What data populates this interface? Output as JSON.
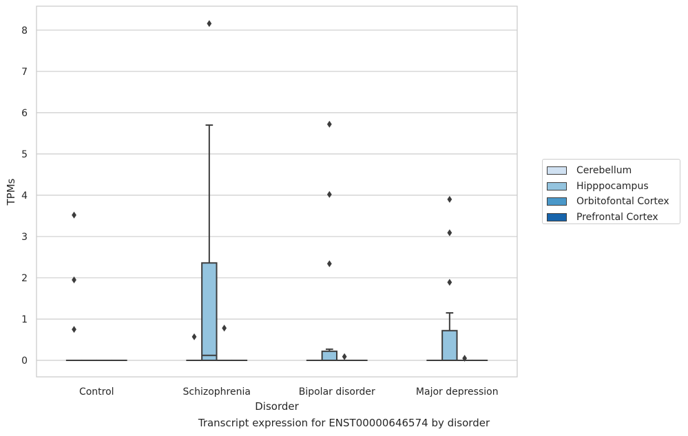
{
  "chart_data": {
    "type": "box",
    "xlabel": "Disorder",
    "ylabel": "TPMs",
    "caption": "Transcript expression for ENST00000646574 by disorder",
    "ylim": [
      -0.4,
      8.58
    ],
    "yticks": [
      "0",
      "1",
      "2",
      "3",
      "4",
      "5",
      "6",
      "7",
      "8"
    ],
    "grid": true,
    "legend_position": "right",
    "categories": [
      "Control",
      "Schizophrenia",
      "Bipolar disorder",
      "Major depression"
    ],
    "series": [
      {
        "name": "Cerebellum",
        "color": "#d0e1f2"
      },
      {
        "name": "Hipppocampus",
        "color": "#94c4df"
      },
      {
        "name": "Orbitofontal Cortex",
        "color": "#4a98c9"
      },
      {
        "name": "Prefrontal Cortex",
        "color": "#1764ab"
      }
    ],
    "boxes": [
      {
        "category": "Control",
        "series": "Cerebellum",
        "q1": 0,
        "median": 0,
        "q3": 0,
        "whisker_low": 0,
        "whisker_high": 0,
        "outliers": [
          0.75,
          1.95,
          3.52
        ]
      },
      {
        "category": "Control",
        "series": "Hipppocampus",
        "q1": 0,
        "median": 0,
        "q3": 0,
        "whisker_low": 0,
        "whisker_high": 0,
        "outliers": []
      },
      {
        "category": "Control",
        "series": "Orbitofontal Cortex",
        "q1": 0,
        "median": 0,
        "q3": 0,
        "whisker_low": 0,
        "whisker_high": 0,
        "outliers": []
      },
      {
        "category": "Control",
        "series": "Prefrontal Cortex",
        "q1": 0,
        "median": 0,
        "q3": 0,
        "whisker_low": 0,
        "whisker_high": 0,
        "outliers": []
      },
      {
        "category": "Schizophrenia",
        "series": "Cerebellum",
        "q1": 0,
        "median": 0,
        "q3": 0,
        "whisker_low": 0,
        "whisker_high": 0,
        "outliers": [
          0.57
        ]
      },
      {
        "category": "Schizophrenia",
        "series": "Hipppocampus",
        "q1": 0,
        "median": 0.12,
        "q3": 2.36,
        "whisker_low": 0,
        "whisker_high": 5.7,
        "outliers": [
          8.16
        ]
      },
      {
        "category": "Schizophrenia",
        "series": "Orbitofontal Cortex",
        "q1": 0,
        "median": 0,
        "q3": 0,
        "whisker_low": 0,
        "whisker_high": 0,
        "outliers": [
          0.78
        ]
      },
      {
        "category": "Schizophrenia",
        "series": "Prefrontal Cortex",
        "q1": 0,
        "median": 0,
        "q3": 0,
        "whisker_low": 0,
        "whisker_high": 0,
        "outliers": []
      },
      {
        "category": "Bipolar disorder",
        "series": "Cerebellum",
        "q1": 0,
        "median": 0,
        "q3": 0,
        "whisker_low": 0,
        "whisker_high": 0,
        "outliers": []
      },
      {
        "category": "Bipolar disorder",
        "series": "Hipppocampus",
        "q1": 0,
        "median": 0,
        "q3": 0.22,
        "whisker_low": 0,
        "whisker_high": 0.27,
        "outliers": [
          2.34,
          4.02,
          5.72
        ]
      },
      {
        "category": "Bipolar disorder",
        "series": "Orbitofontal Cortex",
        "q1": 0,
        "median": 0,
        "q3": 0,
        "whisker_low": 0,
        "whisker_high": 0,
        "outliers": [
          0.09
        ]
      },
      {
        "category": "Bipolar disorder",
        "series": "Prefrontal Cortex",
        "q1": 0,
        "median": 0,
        "q3": 0,
        "whisker_low": 0,
        "whisker_high": 0,
        "outliers": []
      },
      {
        "category": "Major depression",
        "series": "Cerebellum",
        "q1": 0,
        "median": 0,
        "q3": 0,
        "whisker_low": 0,
        "whisker_high": 0,
        "outliers": []
      },
      {
        "category": "Major depression",
        "series": "Hipppocampus",
        "q1": 0,
        "median": 0,
        "q3": 0.72,
        "whisker_low": 0,
        "whisker_high": 1.15,
        "outliers": [
          1.89,
          3.09,
          3.9
        ]
      },
      {
        "category": "Major depression",
        "series": "Orbitofontal Cortex",
        "q1": 0,
        "median": 0,
        "q3": 0,
        "whisker_low": 0,
        "whisker_high": 0,
        "outliers": [
          0.05
        ]
      },
      {
        "category": "Major depression",
        "series": "Prefrontal Cortex",
        "q1": 0,
        "median": 0,
        "q3": 0,
        "whisker_low": 0,
        "whisker_high": 0,
        "outliers": []
      }
    ]
  }
}
